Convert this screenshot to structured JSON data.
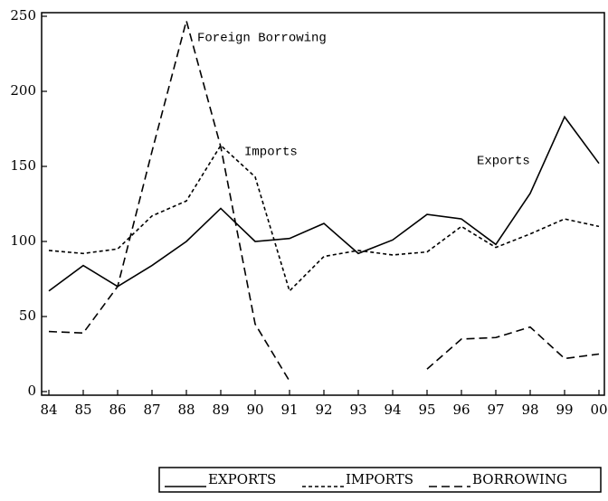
{
  "chart_data": {
    "type": "line",
    "categories": [
      "84",
      "85",
      "86",
      "87",
      "88",
      "89",
      "90",
      "91",
      "92",
      "93",
      "94",
      "95",
      "96",
      "97",
      "98",
      "99",
      "00"
    ],
    "series": [
      {
        "name": "EXPORTS",
        "color": "#000000",
        "line_style": "solid",
        "values": [
          67,
          84,
          70,
          84,
          100,
          122,
          100,
          102,
          112,
          92,
          101,
          118,
          115,
          98,
          132,
          183,
          152
        ]
      },
      {
        "name": "IMPORTS",
        "color": "#000000",
        "line_style": "short-dash",
        "values": [
          94,
          92,
          95,
          117,
          127,
          164,
          143,
          67,
          90,
          94,
          91,
          93,
          110,
          96,
          105,
          115,
          110
        ]
      },
      {
        "name": "BORROWING",
        "color": "#000000",
        "line_style": "long-dash",
        "values": [
          40,
          39,
          70,
          160,
          247,
          163,
          45,
          7,
          null,
          null,
          null,
          15,
          35,
          36,
          43,
          22,
          25
        ]
      }
    ],
    "annotations": [
      "Foreign Borrowing",
      "Imports",
      "Exports"
    ],
    "ylim": [
      0,
      250
    ],
    "yticks": [
      0,
      50,
      100,
      150,
      200,
      250
    ],
    "grid": false,
    "legend": "bottom"
  }
}
